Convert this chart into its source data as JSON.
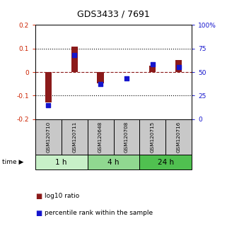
{
  "title": "GDS3433 / 7691",
  "samples": [
    "GSM120710",
    "GSM120711",
    "GSM120648",
    "GSM120708",
    "GSM120715",
    "GSM120716"
  ],
  "log10_ratio": [
    -0.13,
    0.107,
    -0.048,
    0.0,
    0.028,
    0.052
  ],
  "percentile_rank": [
    15,
    68,
    37,
    43,
    58,
    55
  ],
  "ylim_left": [
    -0.2,
    0.2
  ],
  "ylim_right": [
    0,
    100
  ],
  "yticks_left": [
    -0.2,
    -0.1,
    0.0,
    0.1,
    0.2
  ],
  "yticks_right": [
    0,
    25,
    50,
    75,
    100
  ],
  "ytick_labels_right": [
    "0",
    "25",
    "50",
    "75",
    "100%"
  ],
  "hlines_dotted": [
    0.1,
    -0.1
  ],
  "hline_dashed": 0.0,
  "time_groups": [
    {
      "label": "1 h",
      "start": 0,
      "end": 2,
      "color": "#c8f0c8"
    },
    {
      "label": "4 h",
      "start": 2,
      "end": 4,
      "color": "#90d890"
    },
    {
      "label": "24 h",
      "start": 4,
      "end": 6,
      "color": "#50c050"
    }
  ],
  "bar_color": "#8B1A1A",
  "square_color": "#1515CD",
  "bar_width": 0.25,
  "square_size": 22,
  "sample_box_color": "#C8C8C8",
  "background_color": "#ffffff",
  "legend_items": [
    "log10 ratio",
    "percentile rank within the sample"
  ],
  "left_label_color": "#CC2200",
  "right_label_color": "#1515CD"
}
